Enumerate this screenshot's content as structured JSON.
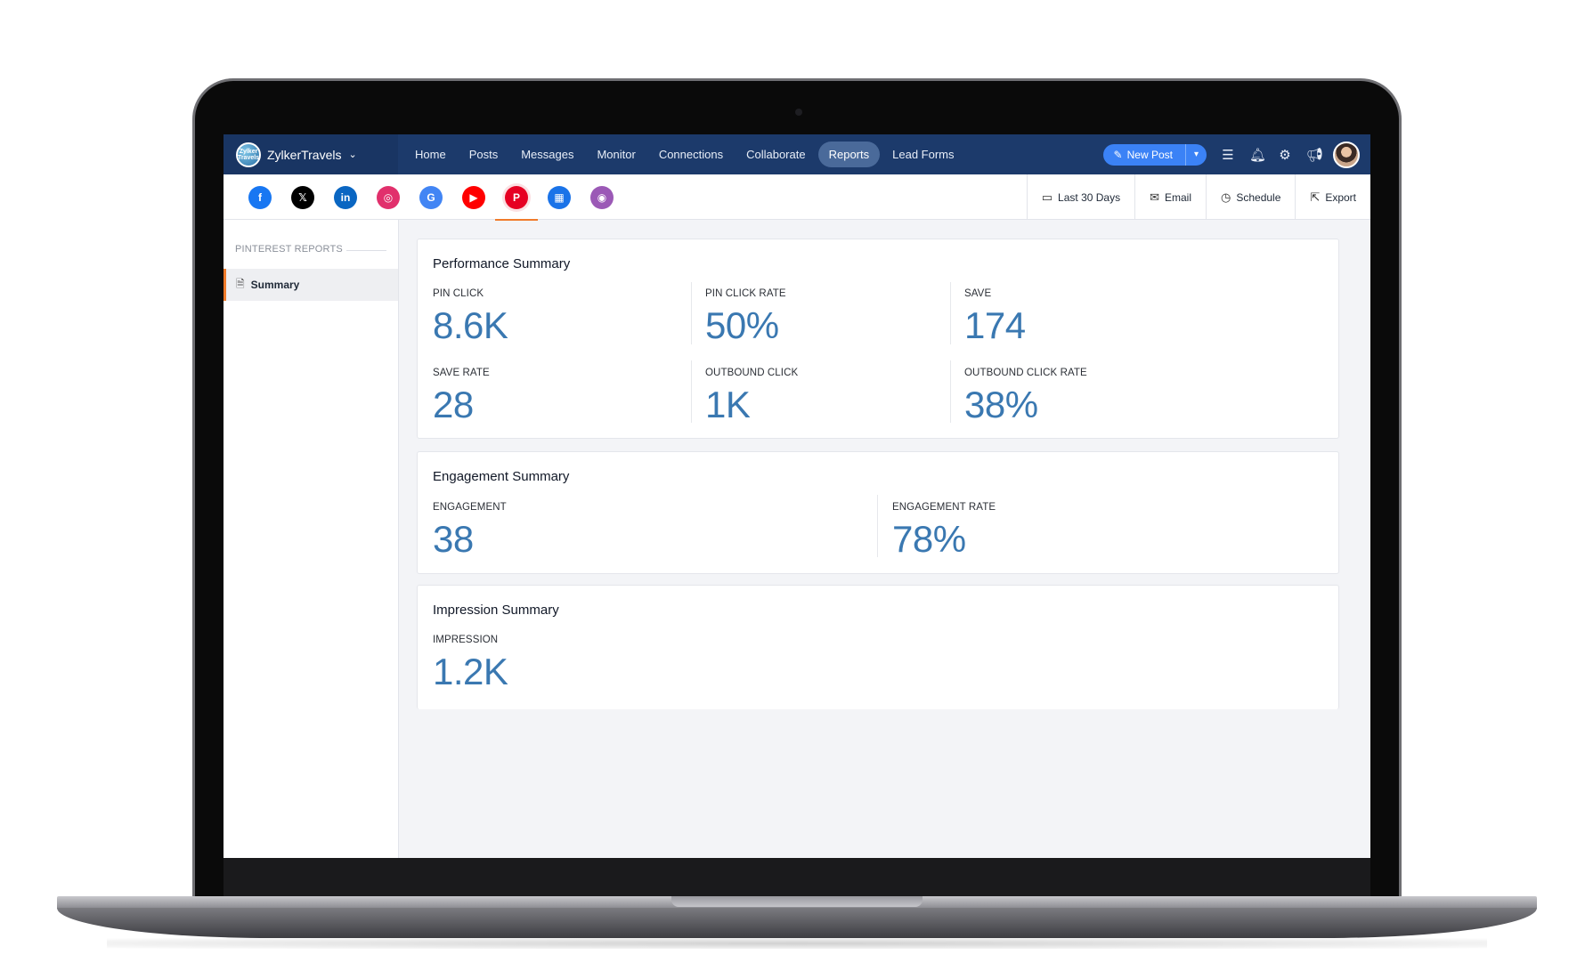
{
  "app": {
    "brand": "ZylkerTravels",
    "logo_text": "Zylker Travels",
    "nav": [
      "Home",
      "Posts",
      "Messages",
      "Monitor",
      "Connections",
      "Collaborate",
      "Reports",
      "Lead Forms"
    ],
    "active_nav": "Reports",
    "new_post_label": "New Post",
    "colors": {
      "topbar": "#1c3a6b",
      "accent": "#3b82f6",
      "metric_value": "#3a78b1",
      "active_indicator": "#f07b2b"
    }
  },
  "channels": [
    {
      "name": "facebook-icon",
      "glyph": "f",
      "color": "#1877f2"
    },
    {
      "name": "x-icon",
      "glyph": "𝕏",
      "color": "#000000"
    },
    {
      "name": "linkedin-icon",
      "glyph": "in",
      "color": "#0a66c2"
    },
    {
      "name": "instagram-icon",
      "glyph": "◎",
      "color": "#e1306c"
    },
    {
      "name": "google-icon",
      "glyph": "G",
      "color": "#4285f4"
    },
    {
      "name": "youtube-icon",
      "glyph": "▶",
      "color": "#ff0000"
    },
    {
      "name": "pinterest-icon",
      "glyph": "P",
      "color": "#e60023",
      "active": true
    },
    {
      "name": "google-business-icon",
      "glyph": "▦",
      "color": "#1a73e8"
    },
    {
      "name": "threads-icon",
      "glyph": "◉",
      "color": "#9b59b6"
    }
  ],
  "actions": {
    "date_range": "Last 30 Days",
    "email": "Email",
    "schedule": "Schedule",
    "export": "Export"
  },
  "sidebar": {
    "heading": "PINTEREST REPORTS",
    "item": "Summary"
  },
  "performance": {
    "title": "Performance Summary",
    "pin_click_label": "PIN CLICK",
    "pin_click_value": "8.6K",
    "pin_click_rate_label": "PIN CLICK RATE",
    "pin_click_rate_value": "50%",
    "save_label": "SAVE",
    "save_value": "174",
    "save_rate_label": "SAVE RATE",
    "save_rate_value": "28",
    "outbound_click_label": "OUTBOUND CLICK",
    "outbound_click_value": "1K",
    "outbound_click_rate_label": "OUTBOUND CLICK RATE",
    "outbound_click_rate_value": "38%"
  },
  "engagement": {
    "title": "Engagement Summary",
    "engagement_label": "ENGAGEMENT",
    "engagement_value": "38",
    "engagement_rate_label": "ENGAGEMENT RATE",
    "engagement_rate_value": "78%"
  },
  "impression": {
    "title": "Impression Summary",
    "impression_label": "IMPRESSION",
    "impression_value": "1.2K"
  }
}
